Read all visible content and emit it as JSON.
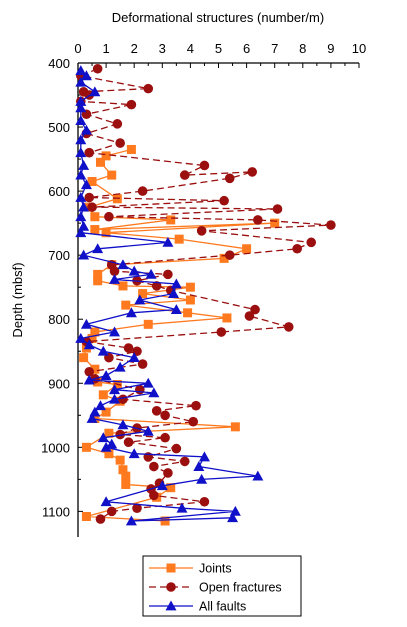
{
  "chart_data": {
    "type": "line",
    "title": "",
    "xlabel": "Deformational structures (number/m)",
    "ylabel": "Depth (mbsf)",
    "xlim": [
      0,
      10
    ],
    "ylim": [
      400,
      1140
    ],
    "y_inverted": true,
    "x_axis_position": "top",
    "grid": false,
    "legend_position": "bottom",
    "x_ticks": [
      0,
      1,
      2,
      3,
      4,
      5,
      6,
      7,
      8,
      9,
      10
    ],
    "y_ticks": [
      400,
      500,
      600,
      700,
      800,
      900,
      1000,
      1100
    ],
    "series": [
      {
        "name": "Joints",
        "color": "#ff7a1f",
        "line_style": "solid",
        "marker": "square",
        "points": [
          [
            1.9,
            535
          ],
          [
            1.0,
            545
          ],
          [
            0.8,
            555
          ],
          [
            1.2,
            575
          ],
          [
            0.5,
            585
          ],
          [
            1.4,
            612
          ],
          [
            0.4,
            625
          ],
          [
            0.6,
            640
          ],
          [
            3.3,
            645
          ],
          [
            0.6,
            660
          ],
          [
            7.0,
            650
          ],
          [
            1.0,
            665
          ],
          [
            3.6,
            675
          ],
          [
            6.0,
            690
          ],
          [
            5.2,
            705
          ],
          [
            1.2,
            715
          ],
          [
            0.7,
            730
          ],
          [
            0.7,
            740
          ],
          [
            1.6,
            748
          ],
          [
            4.0,
            750
          ],
          [
            2.3,
            760
          ],
          [
            4.0,
            770
          ],
          [
            1.7,
            778
          ],
          [
            3.9,
            790
          ],
          [
            5.3,
            798
          ],
          [
            2.5,
            808
          ],
          [
            0.6,
            820
          ],
          [
            0.5,
            830
          ],
          [
            0.3,
            845
          ],
          [
            0.2,
            860
          ],
          [
            0.6,
            878
          ],
          [
            0.7,
            898
          ],
          [
            1.4,
            902
          ],
          [
            0.9,
            918
          ],
          [
            1.5,
            928
          ],
          [
            1.0,
            945
          ],
          [
            0.6,
            955
          ],
          [
            5.6,
            968
          ],
          [
            1.1,
            978
          ],
          [
            0.3,
            1000
          ],
          [
            1.1,
            1010
          ],
          [
            1.5,
            1020
          ],
          [
            1.6,
            1035
          ],
          [
            1.7,
            1045
          ],
          [
            1.7,
            1058
          ],
          [
            3.3,
            1063
          ],
          [
            2.8,
            1078
          ],
          [
            0.3,
            1108
          ],
          [
            3.1,
            1115
          ]
        ]
      },
      {
        "name": "Open fractures",
        "color": "#9b0f0f",
        "line_style": "dashed",
        "marker": "circle",
        "points": [
          [
            0.7,
            409
          ],
          [
            0.1,
            420
          ],
          [
            2.5,
            440
          ],
          [
            0.2,
            445
          ],
          [
            0.4,
            450
          ],
          [
            0.1,
            460
          ],
          [
            1.9,
            465
          ],
          [
            0.3,
            480
          ],
          [
            1.4,
            495
          ],
          [
            0.3,
            510
          ],
          [
            1.5,
            525
          ],
          [
            0.4,
            540
          ],
          [
            4.5,
            560
          ],
          [
            3.8,
            575
          ],
          [
            6.2,
            570
          ],
          [
            5.4,
            580
          ],
          [
            2.3,
            600
          ],
          [
            0.4,
            610
          ],
          [
            5.2,
            615
          ],
          [
            0.5,
            625
          ],
          [
            7.1,
            628
          ],
          [
            1.1,
            640
          ],
          [
            6.4,
            645
          ],
          [
            9.0,
            653
          ],
          [
            4.4,
            662
          ],
          [
            8.3,
            680
          ],
          [
            7.8,
            690
          ],
          [
            5.4,
            700
          ],
          [
            1.2,
            715
          ],
          [
            1.3,
            725
          ],
          [
            3.2,
            730
          ],
          [
            2.1,
            740
          ],
          [
            2.8,
            748
          ],
          [
            3.3,
            755
          ],
          [
            6.3,
            785
          ],
          [
            6.1,
            795
          ],
          [
            7.5,
            812
          ],
          [
            5.1,
            820
          ],
          [
            0.3,
            835
          ],
          [
            1.8,
            845
          ],
          [
            2.1,
            850
          ],
          [
            1.1,
            860
          ],
          [
            2.3,
            870
          ],
          [
            0.4,
            882
          ],
          [
            0.6,
            893
          ],
          [
            2.2,
            910
          ],
          [
            1.6,
            925
          ],
          [
            4.2,
            935
          ],
          [
            2.8,
            943
          ],
          [
            3.1,
            950
          ],
          [
            4.1,
            960
          ],
          [
            2.1,
            970
          ],
          [
            1.5,
            980
          ],
          [
            3.1,
            985
          ],
          [
            1.8,
            992
          ],
          [
            3.5,
            1002
          ],
          [
            2.5,
            1015
          ],
          [
            3.8,
            1022
          ],
          [
            2.7,
            1030
          ],
          [
            3.2,
            1040
          ],
          [
            2.9,
            1056
          ],
          [
            2.6,
            1065
          ],
          [
            2.7,
            1075
          ],
          [
            4.5,
            1085
          ],
          [
            2.1,
            1095
          ],
          [
            1.2,
            1100
          ],
          [
            0.8,
            1112
          ]
        ]
      },
      {
        "name": "All faults",
        "color": "#0f10c8",
        "line_style": "solid",
        "marker": "triangle",
        "points": [
          [
            0.1,
            412
          ],
          [
            0.3,
            420
          ],
          [
            0.1,
            430
          ],
          [
            0.6,
            445
          ],
          [
            0.1,
            460
          ],
          [
            0.1,
            470
          ],
          [
            0.1,
            490
          ],
          [
            0.3,
            505
          ],
          [
            0.1,
            520
          ],
          [
            0.1,
            540
          ],
          [
            0.2,
            560
          ],
          [
            0.1,
            575
          ],
          [
            0.3,
            590
          ],
          [
            0.1,
            610
          ],
          [
            0.2,
            625
          ],
          [
            0.1,
            640
          ],
          [
            0.2,
            655
          ],
          [
            0.1,
            665
          ],
          [
            3.2,
            680
          ],
          [
            0.7,
            690
          ],
          [
            0.2,
            700
          ],
          [
            1.6,
            715
          ],
          [
            2.0,
            725
          ],
          [
            2.6,
            730
          ],
          [
            1.3,
            738
          ],
          [
            3.5,
            745
          ],
          [
            3.4,
            760
          ],
          [
            2.2,
            770
          ],
          [
            3.5,
            785
          ],
          [
            1.9,
            790
          ],
          [
            0.3,
            808
          ],
          [
            1.3,
            820
          ],
          [
            0.1,
            830
          ],
          [
            0.4,
            840
          ],
          [
            0.9,
            850
          ],
          [
            2.0,
            860
          ],
          [
            1.5,
            875
          ],
          [
            1.0,
            888
          ],
          [
            0.4,
            895
          ],
          [
            2.5,
            900
          ],
          [
            1.3,
            910
          ],
          [
            2.7,
            915
          ],
          [
            1.3,
            925
          ],
          [
            0.8,
            935
          ],
          [
            0.6,
            945
          ],
          [
            0.5,
            955
          ],
          [
            1.6,
            965
          ],
          [
            2.5,
            975
          ],
          [
            0.9,
            985
          ],
          [
            1.2,
            995
          ],
          [
            1.0,
            1000
          ],
          [
            2.0,
            1010
          ],
          [
            4.5,
            1015
          ],
          [
            4.3,
            1030
          ],
          [
            6.4,
            1045
          ],
          [
            4.4,
            1050
          ],
          [
            3.0,
            1060
          ],
          [
            1.0,
            1085
          ],
          [
            3.7,
            1095
          ],
          [
            5.6,
            1100
          ],
          [
            1.9,
            1115
          ],
          [
            5.5,
            1110
          ]
        ]
      }
    ]
  }
}
